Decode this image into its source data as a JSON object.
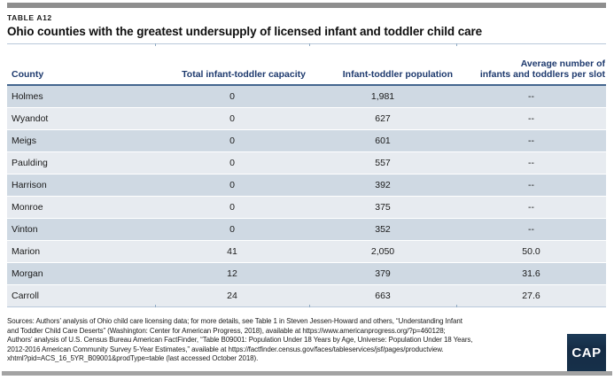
{
  "table_meta": {
    "kicker": "TABLE A12",
    "title": "Ohio counties with the greatest undersupply of licensed infant and toddler child care"
  },
  "table": {
    "headers": [
      {
        "label": "County",
        "lines": [
          "County"
        ]
      },
      {
        "label": "Total infant-toddler capacity",
        "lines": [
          "Total infant-toddler capacity"
        ]
      },
      {
        "label": "Infant-toddler population",
        "lines": [
          "Infant-toddler population"
        ]
      },
      {
        "label": "Average number of infants and toddlers per slot",
        "lines": [
          "Average number of",
          "infants and toddlers per slot"
        ]
      }
    ],
    "column_keys": [
      "county",
      "capacity",
      "population",
      "per_slot"
    ],
    "rows": [
      {
        "county": "Holmes",
        "capacity": "0",
        "population": "1,981",
        "per_slot": "--"
      },
      {
        "county": "Wyandot",
        "capacity": "0",
        "population": "627",
        "per_slot": "--"
      },
      {
        "county": "Meigs",
        "capacity": "0",
        "population": "601",
        "per_slot": "--"
      },
      {
        "county": "Paulding",
        "capacity": "0",
        "population": "557",
        "per_slot": "--"
      },
      {
        "county": "Harrison",
        "capacity": "0",
        "population": "392",
        "per_slot": "--"
      },
      {
        "county": "Monroe",
        "capacity": "0",
        "population": "375",
        "per_slot": "--"
      },
      {
        "county": "Vinton",
        "capacity": "0",
        "population": "352",
        "per_slot": "--"
      },
      {
        "county": "Marion",
        "capacity": "41",
        "population": "2,050",
        "per_slot": "50.0"
      },
      {
        "county": "Morgan",
        "capacity": "12",
        "population": "379",
        "per_slot": "31.6"
      },
      {
        "county": "Carroll",
        "capacity": "24",
        "population": "663",
        "per_slot": "27.6"
      }
    ]
  },
  "sources": {
    "lines": [
      "Sources: Authors’ analysis of Ohio child care licensing data; for more details, see Table 1 in Steven Jessen-Howard and others, “Understanding Infant",
      "and Toddler Child Care Deserts” (Washington: Center for American Progress, 2018), available at https://www.americanprogress.org/?p=460128;",
      "Authors’ analysis of U.S. Census Bureau American FactFinder, “Table B09001: Population Under 18 Years by Age, Universe: Population Under 18 Years,",
      "2012-2016 American Community Survey 5-Year Estimates,” available at https://factfinder.census.gov/faces/tableservices/jsf/pages/productview.",
      "xhtml?pid=ACS_16_5YR_B09001&prodType=table (last accessed October 2018)."
    ]
  },
  "logo": {
    "text": "CAP"
  },
  "colors": {
    "header_text": "#1e3a6e",
    "header_rule": "#44668f",
    "table_edge_rule": "#b9c9da",
    "row_dark": "#cfd9e3",
    "row_light": "#e7ebf0",
    "top_bar": "#8e8e8e",
    "bottom_bar": "#a3a3a3",
    "logo_bg": "#16304a"
  }
}
